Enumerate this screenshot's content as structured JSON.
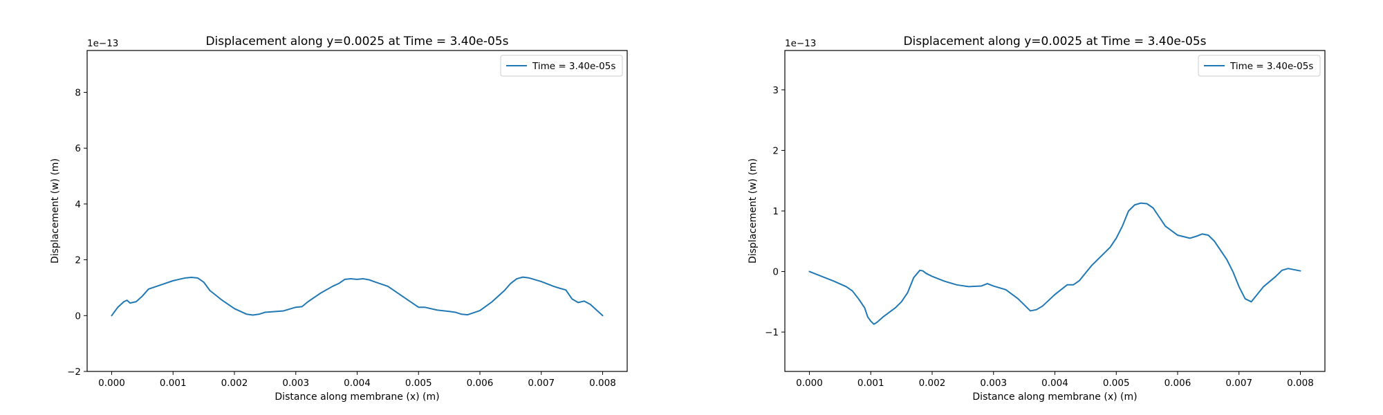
{
  "chart_data": [
    {
      "type": "line",
      "title": "Displacement along y=0.0025 at Time = 3.40e-05s",
      "xlabel": "Distance along membrane (x) (m)",
      "ylabel": "Displacement (w) (m)",
      "offset_text": "1e−13",
      "xlim": [
        -0.0004,
        0.0084
      ],
      "ylim": [
        -2,
        9.5
      ],
      "xticks": [
        0.0,
        0.001,
        0.002,
        0.003,
        0.004,
        0.005,
        0.006,
        0.007,
        0.008
      ],
      "xtick_labels": [
        "0.000",
        "0.001",
        "0.002",
        "0.003",
        "0.004",
        "0.005",
        "0.006",
        "0.007",
        "0.008"
      ],
      "yticks": [
        -2,
        0,
        2,
        4,
        6,
        8
      ],
      "ytick_labels": [
        "−2",
        "0",
        "2",
        "4",
        "6",
        "8"
      ],
      "grid": false,
      "legend_position": "top-right",
      "color": "#1f77b4",
      "series": [
        {
          "name": "Time = 3.40e-05s",
          "x": [
            0.0,
            0.0001,
            0.0002,
            0.00025,
            0.0003,
            0.0004,
            0.0005,
            0.0006,
            0.0008,
            0.001,
            0.0012,
            0.0013,
            0.0014,
            0.0015,
            0.0016,
            0.0018,
            0.002,
            0.0022,
            0.0023,
            0.0024,
            0.0025,
            0.0028,
            0.003,
            0.0031,
            0.0032,
            0.0034,
            0.0036,
            0.0037,
            0.0038,
            0.0039,
            0.004,
            0.0041,
            0.0042,
            0.0043,
            0.0045,
            0.0047,
            0.0049,
            0.005,
            0.0051,
            0.0053,
            0.0055,
            0.0056,
            0.0057,
            0.0058,
            0.006,
            0.0062,
            0.0064,
            0.0065,
            0.0066,
            0.0067,
            0.0068,
            0.007,
            0.0072,
            0.0073,
            0.0074,
            0.0075,
            0.0076,
            0.0077,
            0.0078,
            0.0079,
            0.008
          ],
          "values": [
            0.0,
            0.3,
            0.5,
            0.55,
            0.45,
            0.5,
            0.7,
            0.95,
            1.1,
            1.25,
            1.35,
            1.37,
            1.35,
            1.2,
            0.9,
            0.55,
            0.25,
            0.05,
            0.02,
            0.05,
            0.12,
            0.17,
            0.3,
            0.32,
            0.5,
            0.8,
            1.05,
            1.15,
            1.3,
            1.32,
            1.3,
            1.32,
            1.28,
            1.2,
            1.05,
            0.75,
            0.45,
            0.3,
            0.3,
            0.2,
            0.15,
            0.12,
            0.05,
            0.03,
            0.18,
            0.5,
            0.9,
            1.15,
            1.32,
            1.38,
            1.35,
            1.22,
            1.05,
            0.98,
            0.92,
            0.6,
            0.47,
            0.52,
            0.4,
            0.2,
            0.0
          ]
        }
      ]
    },
    {
      "type": "line",
      "title": "Displacement along y=0.0025 at Time = 3.40e-05s",
      "xlabel": "Distance along membrane (x) (m)",
      "ylabel": "Displacement (w) (m)",
      "offset_text": "1e−13",
      "xlim": [
        -0.0004,
        0.0084
      ],
      "ylim": [
        -1.65,
        3.65
      ],
      "xticks": [
        0.0,
        0.001,
        0.002,
        0.003,
        0.004,
        0.005,
        0.006,
        0.007,
        0.008
      ],
      "xtick_labels": [
        "0.000",
        "0.001",
        "0.002",
        "0.003",
        "0.004",
        "0.005",
        "0.006",
        "0.007",
        "0.008"
      ],
      "yticks": [
        -1,
        0,
        1,
        2,
        3
      ],
      "ytick_labels": [
        "−1",
        "0",
        "1",
        "2",
        "3"
      ],
      "grid": false,
      "legend_position": "top-right",
      "color": "#1f77b4",
      "series": [
        {
          "name": "Time = 3.40e-05s",
          "x": [
            0.0,
            0.0002,
            0.0004,
            0.0006,
            0.0007,
            0.0008,
            0.0009,
            0.00095,
            0.001,
            0.00105,
            0.0011,
            0.0012,
            0.0014,
            0.0015,
            0.0016,
            0.0017,
            0.0018,
            0.00185,
            0.0019,
            0.002,
            0.0022,
            0.0024,
            0.0026,
            0.0028,
            0.0029,
            0.003,
            0.0032,
            0.0034,
            0.0036,
            0.0037,
            0.0038,
            0.004,
            0.0042,
            0.0043,
            0.0044,
            0.0046,
            0.0048,
            0.0049,
            0.005,
            0.0051,
            0.0052,
            0.0053,
            0.0054,
            0.0055,
            0.0056,
            0.0057,
            0.0058,
            0.006,
            0.0062,
            0.0063,
            0.0064,
            0.0065,
            0.0066,
            0.0068,
            0.0069,
            0.007,
            0.0071,
            0.0072,
            0.0074,
            0.0076,
            0.0077,
            0.0078,
            0.0079,
            0.008
          ],
          "values": [
            0.0,
            -0.08,
            -0.16,
            -0.25,
            -0.32,
            -0.45,
            -0.6,
            -0.75,
            -0.82,
            -0.87,
            -0.84,
            -0.75,
            -0.6,
            -0.5,
            -0.35,
            -0.1,
            0.02,
            0.01,
            -0.03,
            -0.08,
            -0.16,
            -0.22,
            -0.25,
            -0.24,
            -0.2,
            -0.24,
            -0.3,
            -0.45,
            -0.65,
            -0.63,
            -0.57,
            -0.38,
            -0.22,
            -0.22,
            -0.15,
            0.1,
            0.3,
            0.4,
            0.55,
            0.75,
            1.0,
            1.1,
            1.13,
            1.12,
            1.05,
            0.9,
            0.75,
            0.6,
            0.55,
            0.58,
            0.62,
            0.6,
            0.5,
            0.2,
            0.0,
            -0.25,
            -0.45,
            -0.5,
            -0.25,
            -0.08,
            0.02,
            0.05,
            0.03,
            0.01
          ]
        }
      ]
    }
  ]
}
